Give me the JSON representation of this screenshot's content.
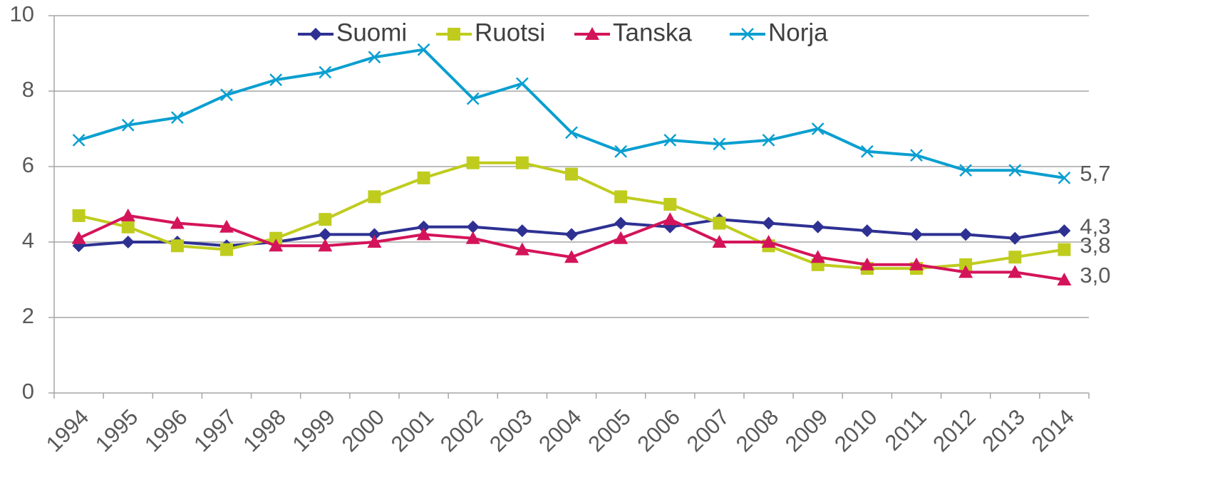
{
  "chart_data": {
    "type": "line",
    "categories": [
      "1994",
      "1995",
      "1996",
      "1997",
      "1998",
      "1999",
      "2000",
      "2001",
      "2002",
      "2003",
      "2004",
      "2005",
      "2006",
      "2007",
      "2008",
      "2009",
      "2010",
      "2011",
      "2012",
      "2013",
      "2014"
    ],
    "series": [
      {
        "name": "Suomi",
        "color": "#2e3192",
        "marker": "diamond",
        "values": [
          3.9,
          4.0,
          4.0,
          3.9,
          4.0,
          4.2,
          4.2,
          4.4,
          4.4,
          4.3,
          4.2,
          4.5,
          4.4,
          4.6,
          4.5,
          4.4,
          4.3,
          4.2,
          4.2,
          4.1,
          4.3
        ],
        "value_labels": [
          null,
          null,
          null,
          null,
          null,
          null,
          null,
          null,
          null,
          null,
          null,
          null,
          null,
          null,
          null,
          null,
          null,
          null,
          null,
          null,
          "4,3"
        ]
      },
      {
        "name": "Ruotsi",
        "color": "#bfcc1e",
        "marker": "square",
        "values": [
          4.7,
          4.4,
          3.9,
          3.8,
          4.1,
          4.6,
          5.2,
          5.7,
          6.1,
          6.1,
          5.8,
          5.2,
          5.0,
          4.5,
          3.9,
          3.4,
          3.3,
          3.3,
          3.4,
          3.6,
          3.8
        ],
        "value_labels": [
          null,
          null,
          null,
          null,
          null,
          null,
          null,
          null,
          null,
          null,
          null,
          null,
          null,
          null,
          null,
          null,
          null,
          null,
          null,
          null,
          "3,8"
        ]
      },
      {
        "name": "Tanska",
        "color": "#d4145a",
        "marker": "triangle",
        "values": [
          4.1,
          4.7,
          4.5,
          4.4,
          3.9,
          3.9,
          4.0,
          4.2,
          4.1,
          3.8,
          3.6,
          4.1,
          4.6,
          4.0,
          4.0,
          3.6,
          3.4,
          3.4,
          3.2,
          3.2,
          3.0
        ],
        "value_labels": [
          null,
          null,
          null,
          null,
          null,
          null,
          null,
          null,
          null,
          null,
          null,
          null,
          null,
          null,
          null,
          null,
          null,
          null,
          null,
          null,
          "3,0"
        ]
      },
      {
        "name": "Norja",
        "color": "#0a9fd0",
        "marker": "x",
        "values": [
          6.7,
          7.1,
          7.3,
          7.9,
          8.3,
          8.5,
          8.9,
          9.1,
          7.8,
          8.2,
          6.9,
          6.4,
          6.7,
          6.6,
          6.7,
          7.0,
          6.4,
          6.3,
          5.9,
          5.9,
          5.7
        ],
        "value_labels": [
          null,
          null,
          null,
          null,
          null,
          null,
          null,
          null,
          null,
          null,
          null,
          null,
          null,
          null,
          null,
          null,
          null,
          null,
          null,
          null,
          "5,7"
        ]
      }
    ],
    "ylim": [
      0,
      10
    ],
    "yticks": [
      0,
      2,
      4,
      6,
      8,
      10
    ],
    "grid": true,
    "legend": "top"
  }
}
